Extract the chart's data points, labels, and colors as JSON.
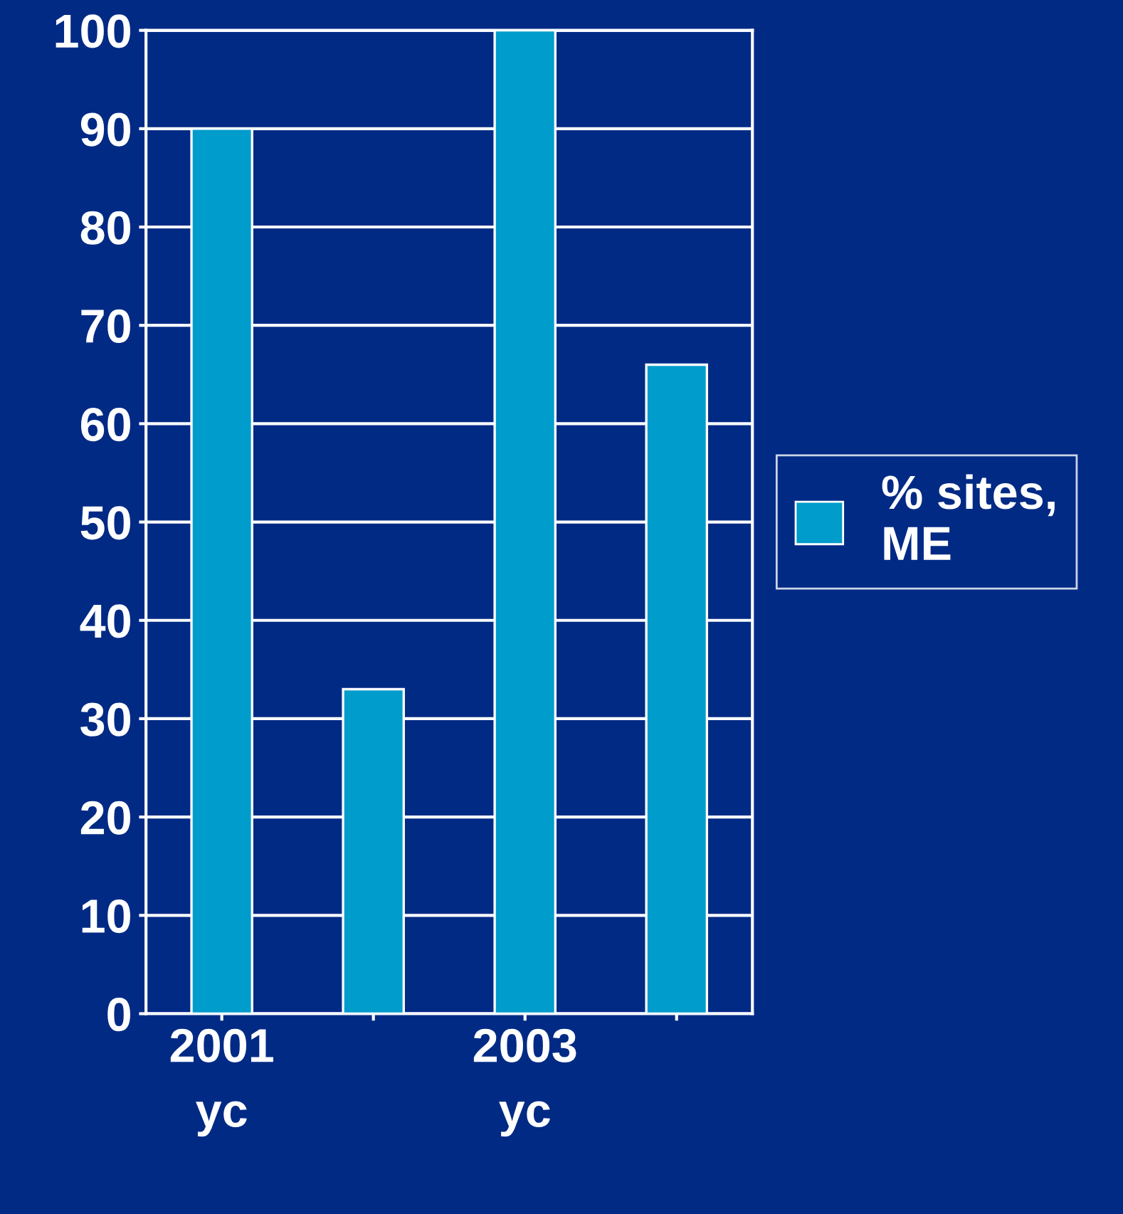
{
  "chart_data": {
    "type": "bar",
    "categories": [
      "2001\nyc",
      null,
      "2003\nyc",
      null
    ],
    "series": [
      {
        "name": "% sites,\nME",
        "color": "#009ccc",
        "values": [
          90,
          33,
          100,
          66
        ]
      }
    ],
    "ylim": [
      0,
      100
    ],
    "yticks": [
      0,
      10,
      20,
      30,
      40,
      50,
      60,
      70,
      80,
      90,
      100
    ],
    "grid": "y",
    "legend": "right"
  }
}
